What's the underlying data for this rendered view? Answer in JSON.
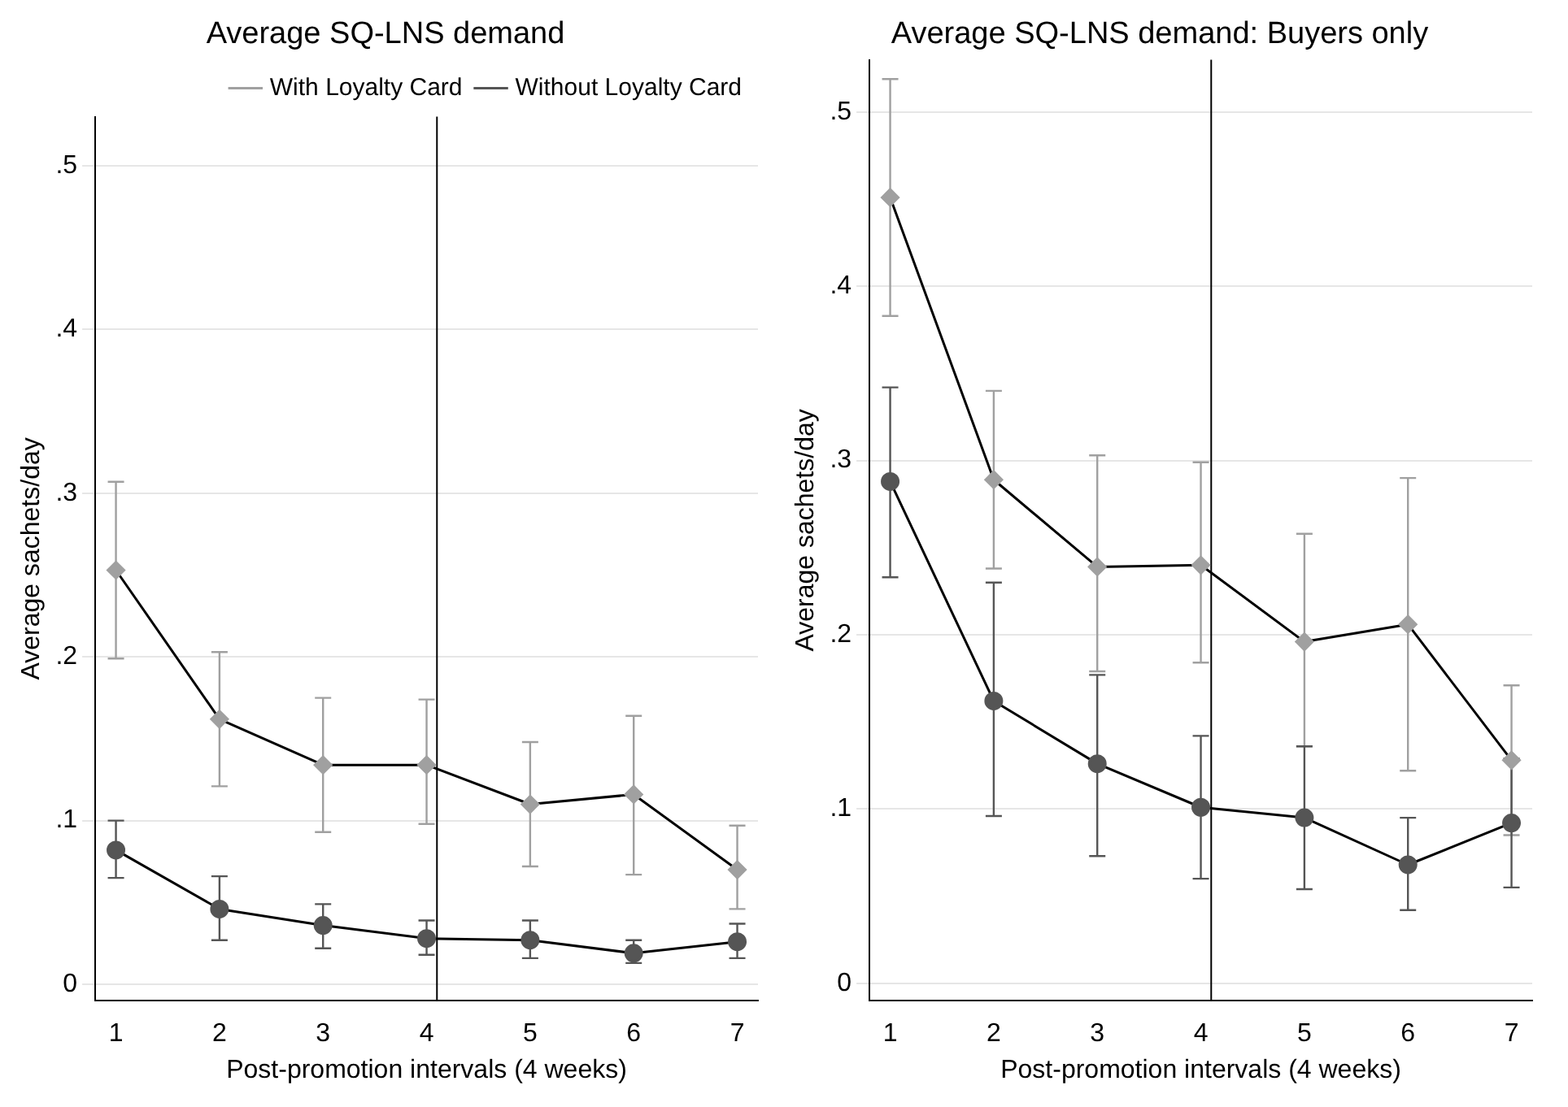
{
  "chart_data": [
    {
      "type": "line",
      "title": "Average SQ-LNS demand",
      "xlabel": "Post-promotion intervals (4 weeks)",
      "ylabel": "Average sachets/day",
      "x": [
        1,
        2,
        3,
        4,
        5,
        6,
        7
      ],
      "xlim": [
        0.8,
        7.2
      ],
      "xticks": [
        1,
        2,
        3,
        4,
        5,
        6,
        7
      ],
      "ylim": [
        -0.01,
        0.53
      ],
      "yticks": [
        {
          "value": 0,
          "label": "0"
        },
        {
          "value": 0.1,
          "label": ".1"
        },
        {
          "value": 0.2,
          "label": ".2"
        },
        {
          "value": 0.3,
          "label": ".3"
        },
        {
          "value": 0.4,
          "label": ".4"
        },
        {
          "value": 0.5,
          "label": ".5"
        }
      ],
      "grid": "y",
      "legend": "top right",
      "series": [
        {
          "name": "With Loyalty Card",
          "color": "#a0a0a0",
          "marker": "diamond",
          "values": [
            0.253,
            0.162,
            0.134,
            0.134,
            0.11,
            0.116,
            0.07
          ],
          "errors": [
            [
              0.199,
              0.307
            ],
            [
              0.121,
              0.203
            ],
            [
              0.093,
              0.175
            ],
            [
              0.098,
              0.174
            ],
            [
              0.072,
              0.148
            ],
            [
              0.067,
              0.164
            ],
            [
              0.046,
              0.097
            ]
          ]
        },
        {
          "name": "Without Loyalty Card",
          "color": "#555555",
          "marker": "circle",
          "values": [
            0.082,
            0.046,
            0.036,
            0.028,
            0.027,
            0.019,
            0.026
          ],
          "errors": [
            [
              0.065,
              0.1
            ],
            [
              0.027,
              0.066
            ],
            [
              0.022,
              0.049
            ],
            [
              0.018,
              0.039
            ],
            [
              0.016,
              0.039
            ],
            [
              0.013,
              0.027
            ],
            [
              0.016,
              0.037
            ]
          ]
        }
      ],
      "ref_lines": [
        {
          "axis": "x",
          "value": 4.1,
          "color": "#000000"
        }
      ]
    },
    {
      "type": "line",
      "title": "Average SQ-LNS demand: Buyers only",
      "xlabel": "Post-promotion intervals (4 weeks)",
      "ylabel": "Average sachets/day",
      "x": [
        1,
        2,
        3,
        4,
        5,
        6,
        7
      ],
      "xlim": [
        0.8,
        7.2
      ],
      "xticks": [
        1,
        2,
        3,
        4,
        5,
        6,
        7
      ],
      "ylim": [
        -0.01,
        0.53
      ],
      "yticks": [
        {
          "value": 0,
          "label": "0"
        },
        {
          "value": 0.1,
          "label": ".1"
        },
        {
          "value": 0.2,
          "label": ".2"
        },
        {
          "value": 0.3,
          "label": ".3"
        },
        {
          "value": 0.4,
          "label": ".4"
        },
        {
          "value": 0.5,
          "label": ".5"
        }
      ],
      "grid": "y",
      "legend": false,
      "series": [
        {
          "color": "#a0a0a0",
          "marker": "diamond",
          "values": [
            0.451,
            0.289,
            0.239,
            0.24,
            0.196,
            0.206,
            0.128
          ],
          "errors": [
            [
              0.383,
              0.519
            ],
            [
              0.238,
              0.34
            ],
            [
              0.179,
              0.303
            ],
            [
              0.184,
              0.299
            ],
            [
              0.136,
              0.258
            ],
            [
              0.122,
              0.29
            ],
            [
              0.085,
              0.171
            ]
          ]
        },
        {
          "color": "#555555",
          "marker": "circle",
          "values": [
            0.288,
            0.162,
            0.126,
            0.101,
            0.095,
            0.068,
            0.092
          ],
          "errors": [
            [
              0.233,
              0.342
            ],
            [
              0.096,
              0.23
            ],
            [
              0.073,
              0.177
            ],
            [
              0.06,
              0.142
            ],
            [
              0.054,
              0.136
            ],
            [
              0.042,
              0.095
            ],
            [
              0.055,
              0.129
            ]
          ]
        }
      ],
      "ref_lines": [
        {
          "axis": "x",
          "value": 4.1,
          "color": "#000000"
        }
      ]
    }
  ]
}
